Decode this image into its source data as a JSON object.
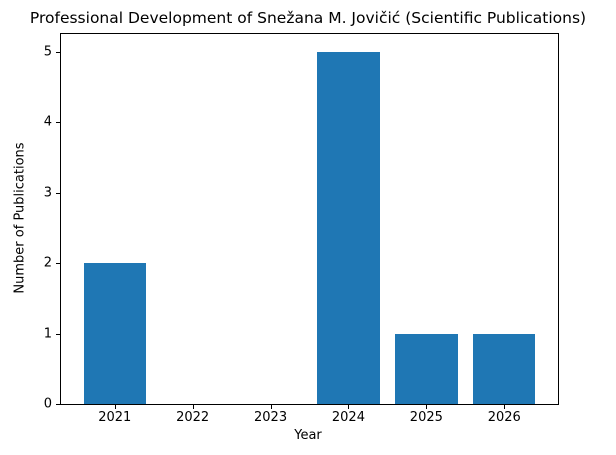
{
  "chart_data": {
    "type": "bar",
    "title": "Professional Development of Snežana M. Jovičić (Scientific Publications)",
    "xlabel": "Year",
    "ylabel": "Number of Publications",
    "categories": [
      "2021",
      "2022",
      "2023",
      "2024",
      "2025",
      "2026"
    ],
    "values": [
      2,
      0,
      0,
      5,
      1,
      1
    ],
    "yticks": [
      0,
      1,
      2,
      3,
      4,
      5
    ],
    "ylim": [
      0,
      5.25
    ],
    "xlim": [
      -0.69,
      5.69
    ],
    "bar_width": 0.8,
    "bar_color": "#1f77b4",
    "axis_color": "#000000",
    "background": "#ffffff",
    "grid": false,
    "legend": null
  }
}
